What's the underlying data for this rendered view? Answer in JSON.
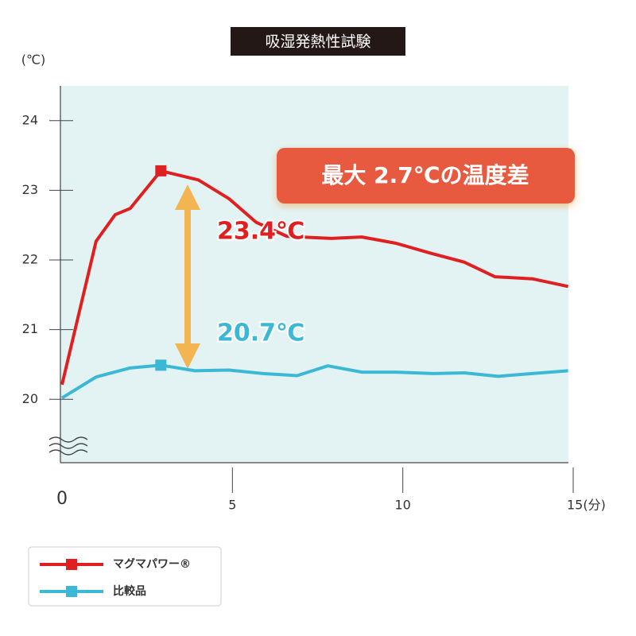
{
  "chart_data": {
    "type": "line",
    "title": "吸湿発熱性試験",
    "y_unit": "(℃)",
    "callout": "最大 2.7℃の温度差",
    "annotations": [
      {
        "text": "23.4℃",
        "color": "#e02020"
      },
      {
        "text": "20.7℃",
        "color": "#3bb8d6"
      }
    ],
    "xlim": [
      0,
      15
    ],
    "xticks": [
      0,
      5,
      10,
      {
        "value": 15,
        "label": "15(分)"
      }
    ],
    "ylim": [
      19.09,
      24.5
    ],
    "yticks": [
      20,
      21,
      22,
      23,
      24
    ],
    "series": [
      {
        "name": "マグマパワー®",
        "color": "#e02020",
        "x": [
          0,
          1,
          1.56,
          2,
          2.9,
          4,
          4.9,
          5.7,
          6.6,
          7.9,
          8.8,
          9.8,
          10.8,
          11.8,
          12.7,
          13.8,
          14.85
        ],
        "values": [
          20.21,
          22.27,
          22.65,
          22.74,
          23.28,
          23.15,
          22.88,
          22.54,
          22.34,
          22.31,
          22.33,
          22.24,
          22.1,
          21.97,
          21.76,
          21.73,
          21.62
        ]
      },
      {
        "name": "比較品",
        "color": "#3bb8d6",
        "x": [
          0,
          1,
          2,
          2.9,
          3.9,
          4.9,
          5.9,
          6.9,
          7.8,
          8.8,
          9.8,
          10.9,
          11.8,
          12.8,
          13.8,
          14.85
        ],
        "values": [
          20.02,
          20.32,
          20.45,
          20.49,
          20.41,
          20.42,
          20.37,
          20.34,
          20.48,
          20.39,
          20.39,
          20.37,
          20.38,
          20.33,
          20.37,
          20.41
        ]
      }
    ]
  }
}
